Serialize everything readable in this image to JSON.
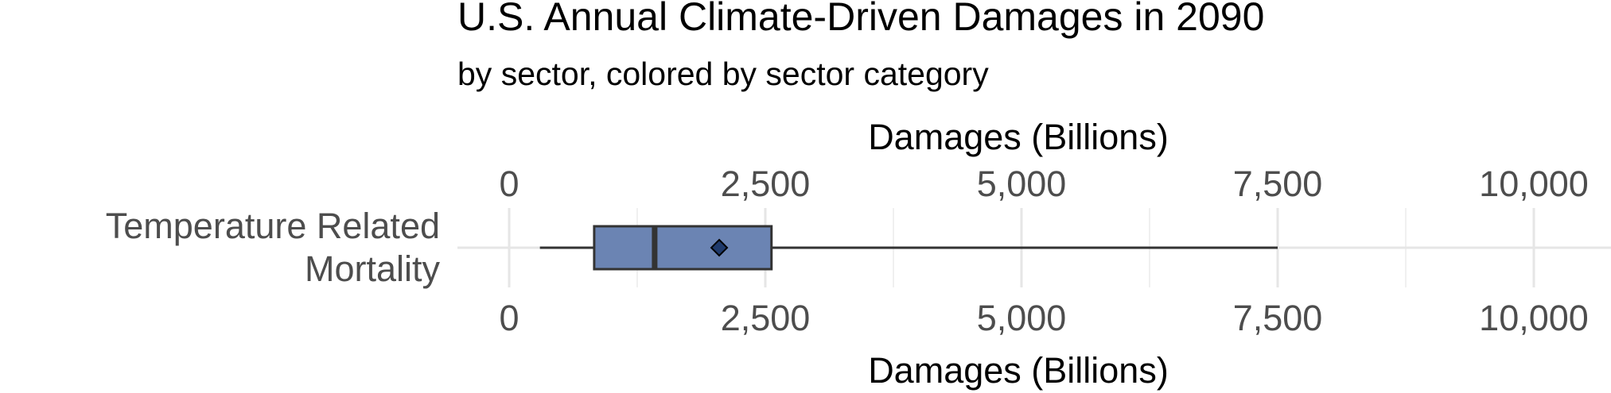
{
  "chart_data": {
    "type": "boxplot",
    "title": "U.S. Annual Climate-Driven Damages in 2090",
    "subtitle": "by sector, colored by sector category",
    "xlabel_top": "Damages (Billions)",
    "xlabel_bottom": "Damages (Billions)",
    "xlim": [
      0,
      10000
    ],
    "x_ticks": [
      0,
      2500,
      5000,
      7500,
      10000
    ],
    "x_tick_labels": [
      "0",
      "2,500",
      "5,000",
      "7,500",
      "10,000"
    ],
    "grid": true,
    "categories": [
      {
        "label_lines": [
          "Temperature Related",
          "Mortality"
        ],
        "whisker_low": 300,
        "q1": 830,
        "median": 1420,
        "mean": 2050,
        "q3": 2560,
        "whisker_high": 7500,
        "fill_color": "#6b84b3",
        "mean_marker_color": "#1f3a6b"
      }
    ]
  }
}
